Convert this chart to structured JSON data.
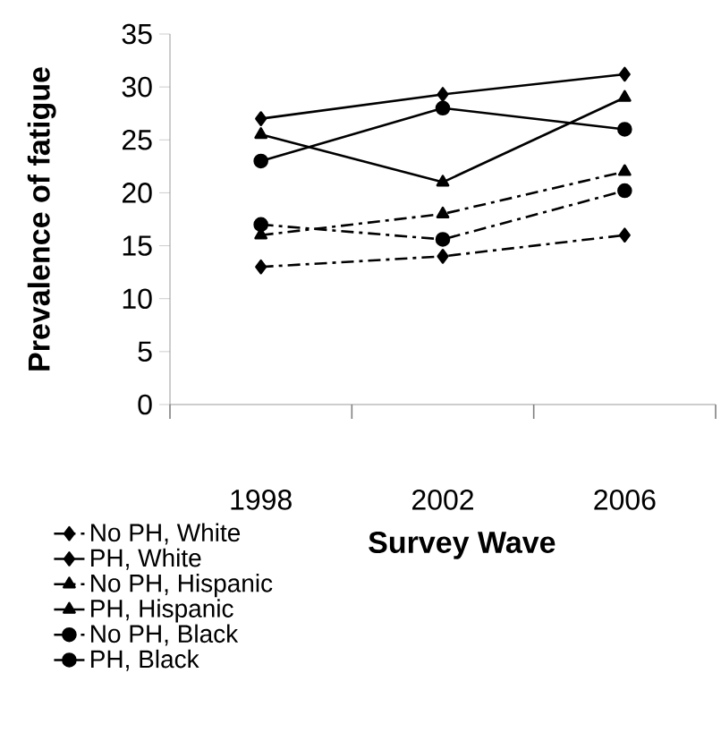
{
  "chart_data": {
    "type": "line",
    "xlabel": "Survey Wave",
    "ylabel": "Prevalence of fatigue",
    "categories": [
      "1998",
      "2002",
      "2006"
    ],
    "ylim": [
      0,
      35
    ],
    "yticks": [
      0,
      5,
      10,
      15,
      20,
      25,
      30,
      35
    ],
    "grid": false,
    "legend": "bottom left",
    "series": [
      {
        "name": "No PH, White",
        "color": "#000000",
        "marker": "diamond",
        "line_style": "dashed",
        "values": [
          13,
          14,
          16
        ]
      },
      {
        "name": "PH, White",
        "color": "#000000",
        "marker": "diamond",
        "line_style": "solid",
        "values": [
          27,
          29.3,
          31.2
        ]
      },
      {
        "name": "No PH, Hispanic",
        "color": "#000000",
        "marker": "triangle",
        "line_style": "dashed",
        "values": [
          16,
          18,
          22
        ]
      },
      {
        "name": "PH, Hispanic",
        "color": "#000000",
        "marker": "triangle",
        "line_style": "solid",
        "values": [
          25.5,
          21,
          29
        ]
      },
      {
        "name": "No PH, Black",
        "color": "#000000",
        "marker": "circle",
        "line_style": "dashed",
        "values": [
          17,
          15.6,
          20.2
        ]
      },
      {
        "name": "PH, Black",
        "color": "#000000",
        "marker": "circle",
        "line_style": "solid",
        "values": [
          23,
          28,
          26
        ]
      }
    ]
  }
}
